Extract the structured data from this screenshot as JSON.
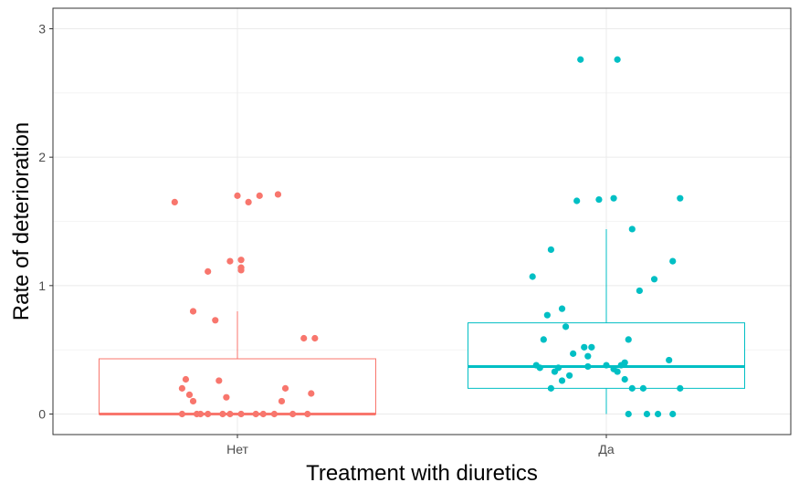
{
  "chart_data": {
    "type": "box",
    "xlabel": "Treatment with diuretics",
    "ylabel": "Rate of deterioration",
    "ylim": [
      -0.16,
      3.16
    ],
    "y_ticks": [
      0,
      1,
      2,
      3
    ],
    "categories": [
      "Нет",
      "Да"
    ],
    "grid": true,
    "colors": {
      "Нет": "#F8766D",
      "Да": "#00BFC4"
    },
    "boxes": [
      {
        "category": "Нет",
        "lower_whisker": 0,
        "q1": 0,
        "median": 0,
        "q3": 0.43,
        "upper_whisker": 0.8
      },
      {
        "category": "Да",
        "lower_whisker": 0,
        "q1": 0.2,
        "median": 0.37,
        "q3": 0.71,
        "upper_whisker": 1.44
      }
    ],
    "points": [
      {
        "category": "Нет",
        "x": [
          -0.17,
          0.0,
          0.03,
          0.06,
          0.11,
          -0.08,
          -0.02,
          0.18,
          0.21,
          0.01,
          0.01,
          0.01,
          -0.12,
          -0.15,
          -0.13,
          -0.12,
          -0.14,
          -0.06,
          -0.03,
          -0.05,
          -0.1,
          -0.04,
          -0.08,
          -0.11,
          -0.15,
          0.01,
          -0.02,
          0.05,
          0.07,
          0.1,
          0.15,
          0.19,
          0.2,
          0.13,
          0.12
        ],
        "y": [
          1.65,
          1.7,
          1.65,
          1.7,
          1.71,
          1.11,
          1.19,
          0.59,
          0.59,
          1.2,
          1.14,
          1.12,
          0.8,
          0.2,
          0.15,
          0.1,
          0.27,
          0.73,
          0.13,
          0.26,
          0,
          0,
          0,
          0,
          0,
          0,
          0,
          0,
          0,
          0,
          0,
          0,
          0.16,
          0.2,
          0.1
        ]
      },
      {
        "category": "Да",
        "x": [
          -0.2,
          -0.15,
          -0.12,
          -0.08,
          -0.16,
          -0.06,
          -0.02,
          0.07,
          0.02,
          0.03,
          0.13,
          0.2,
          0.18,
          0.09,
          -0.11,
          -0.17,
          -0.19,
          -0.13,
          -0.1,
          -0.05,
          0.0,
          0.04,
          0.06,
          -0.09,
          -0.14,
          -0.18,
          -0.12,
          -0.04,
          0.02,
          0.05,
          0.1,
          0.17,
          0.2,
          -0.15,
          -0.05,
          0.03,
          0.05,
          0.07,
          0.14,
          0.18,
          0.11,
          0.06,
          -0.07
        ],
        "y": [
          1.07,
          1.28,
          0.82,
          1.66,
          0.77,
          0.52,
          1.67,
          1.44,
          1.68,
          2.76,
          1.05,
          1.68,
          1.19,
          0.96,
          0.68,
          0.58,
          0.38,
          0.36,
          0.3,
          0.45,
          0.38,
          0.38,
          0.58,
          0.47,
          0.33,
          0.36,
          0.26,
          0.52,
          0.35,
          0.4,
          0.2,
          0.42,
          0.2,
          0.2,
          0.37,
          0.33,
          0.27,
          0.2,
          0,
          0,
          0,
          0,
          2.76
        ]
      }
    ]
  }
}
